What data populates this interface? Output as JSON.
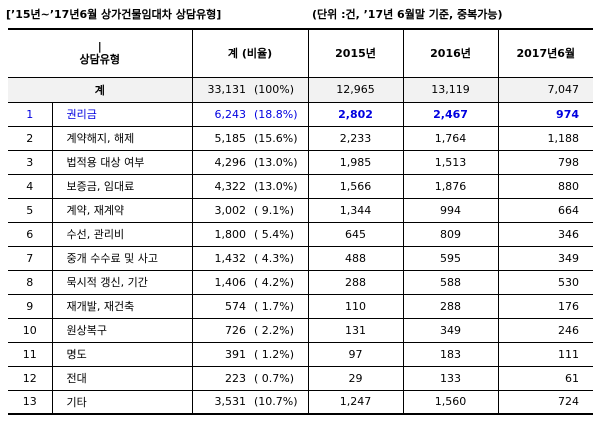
{
  "title": {
    "left": "[’15년~’17년6월 상가건물임대차 상담유형]",
    "right": "(단위 :건, ’17년 6월말 기준, 중복가능)"
  },
  "table": {
    "headers": {
      "corner_top": "|",
      "corner_bottom": "상담유형",
      "total": "계 (비율)",
      "y2015": "2015년",
      "y2016": "2016년",
      "y2017": "2017년6월"
    },
    "total_row": {
      "label": "계",
      "count": "33,131",
      "ratio": "(100%)",
      "y2015": "12,965",
      "y2016": "13,119",
      "y2017": "7,047"
    },
    "rows": [
      {
        "no": "1",
        "type": "권리금",
        "count": "6,243",
        "ratio": "(18.8%)",
        "y2015": "2,802",
        "y2016": "2,467",
        "y2017": "974"
      },
      {
        "no": "2",
        "type": "계약해지, 해제",
        "count": "5,185",
        "ratio": "(15.6%)",
        "y2015": "2,233",
        "y2016": "1,764",
        "y2017": "1,188"
      },
      {
        "no": "3",
        "type": "법적용 대상 여부",
        "count": "4,296",
        "ratio": "(13.0%)",
        "y2015": "1,985",
        "y2016": "1,513",
        "y2017": "798"
      },
      {
        "no": "4",
        "type": "보증금, 임대료",
        "count": "4,322",
        "ratio": "(13.0%)",
        "y2015": "1,566",
        "y2016": "1,876",
        "y2017": "880"
      },
      {
        "no": "5",
        "type": "계약, 재계약",
        "count": "3,002",
        "ratio": "( 9.1%)",
        "y2015": "1,344",
        "y2016": "994",
        "y2017": "664"
      },
      {
        "no": "6",
        "type": "수선, 관리비",
        "count": "1,800",
        "ratio": "( 5.4%)",
        "y2015": "645",
        "y2016": "809",
        "y2017": "346"
      },
      {
        "no": "7",
        "type": "중개 수수료 및 사고",
        "count": "1,432",
        "ratio": "( 4.3%)",
        "y2015": "488",
        "y2016": "595",
        "y2017": "349"
      },
      {
        "no": "8",
        "type": "묵시적 갱신, 기간",
        "count": "1,406",
        "ratio": "( 4.2%)",
        "y2015": "288",
        "y2016": "588",
        "y2017": "530"
      },
      {
        "no": "9",
        "type": "재개발, 재건축",
        "count": "574",
        "ratio": "( 1.7%)",
        "y2015": "110",
        "y2016": "288",
        "y2017": "176"
      },
      {
        "no": "10",
        "type": "원상복구",
        "count": "726",
        "ratio": "( 2.2%)",
        "y2015": "131",
        "y2016": "349",
        "y2017": "246"
      },
      {
        "no": "11",
        "type": "명도",
        "count": "391",
        "ratio": "( 1.2%)",
        "y2015": "97",
        "y2016": "183",
        "y2017": "111"
      },
      {
        "no": "12",
        "type": "전대",
        "count": "223",
        "ratio": "( 0.7%)",
        "y2015": "29",
        "y2016": "133",
        "y2017": "61"
      },
      {
        "no": "13",
        "type": "기타",
        "count": "3,531",
        "ratio": "(10.7%)",
        "y2015": "1,247",
        "y2016": "1,560",
        "y2017": "724"
      }
    ]
  },
  "highlight_color": "#0000e0"
}
